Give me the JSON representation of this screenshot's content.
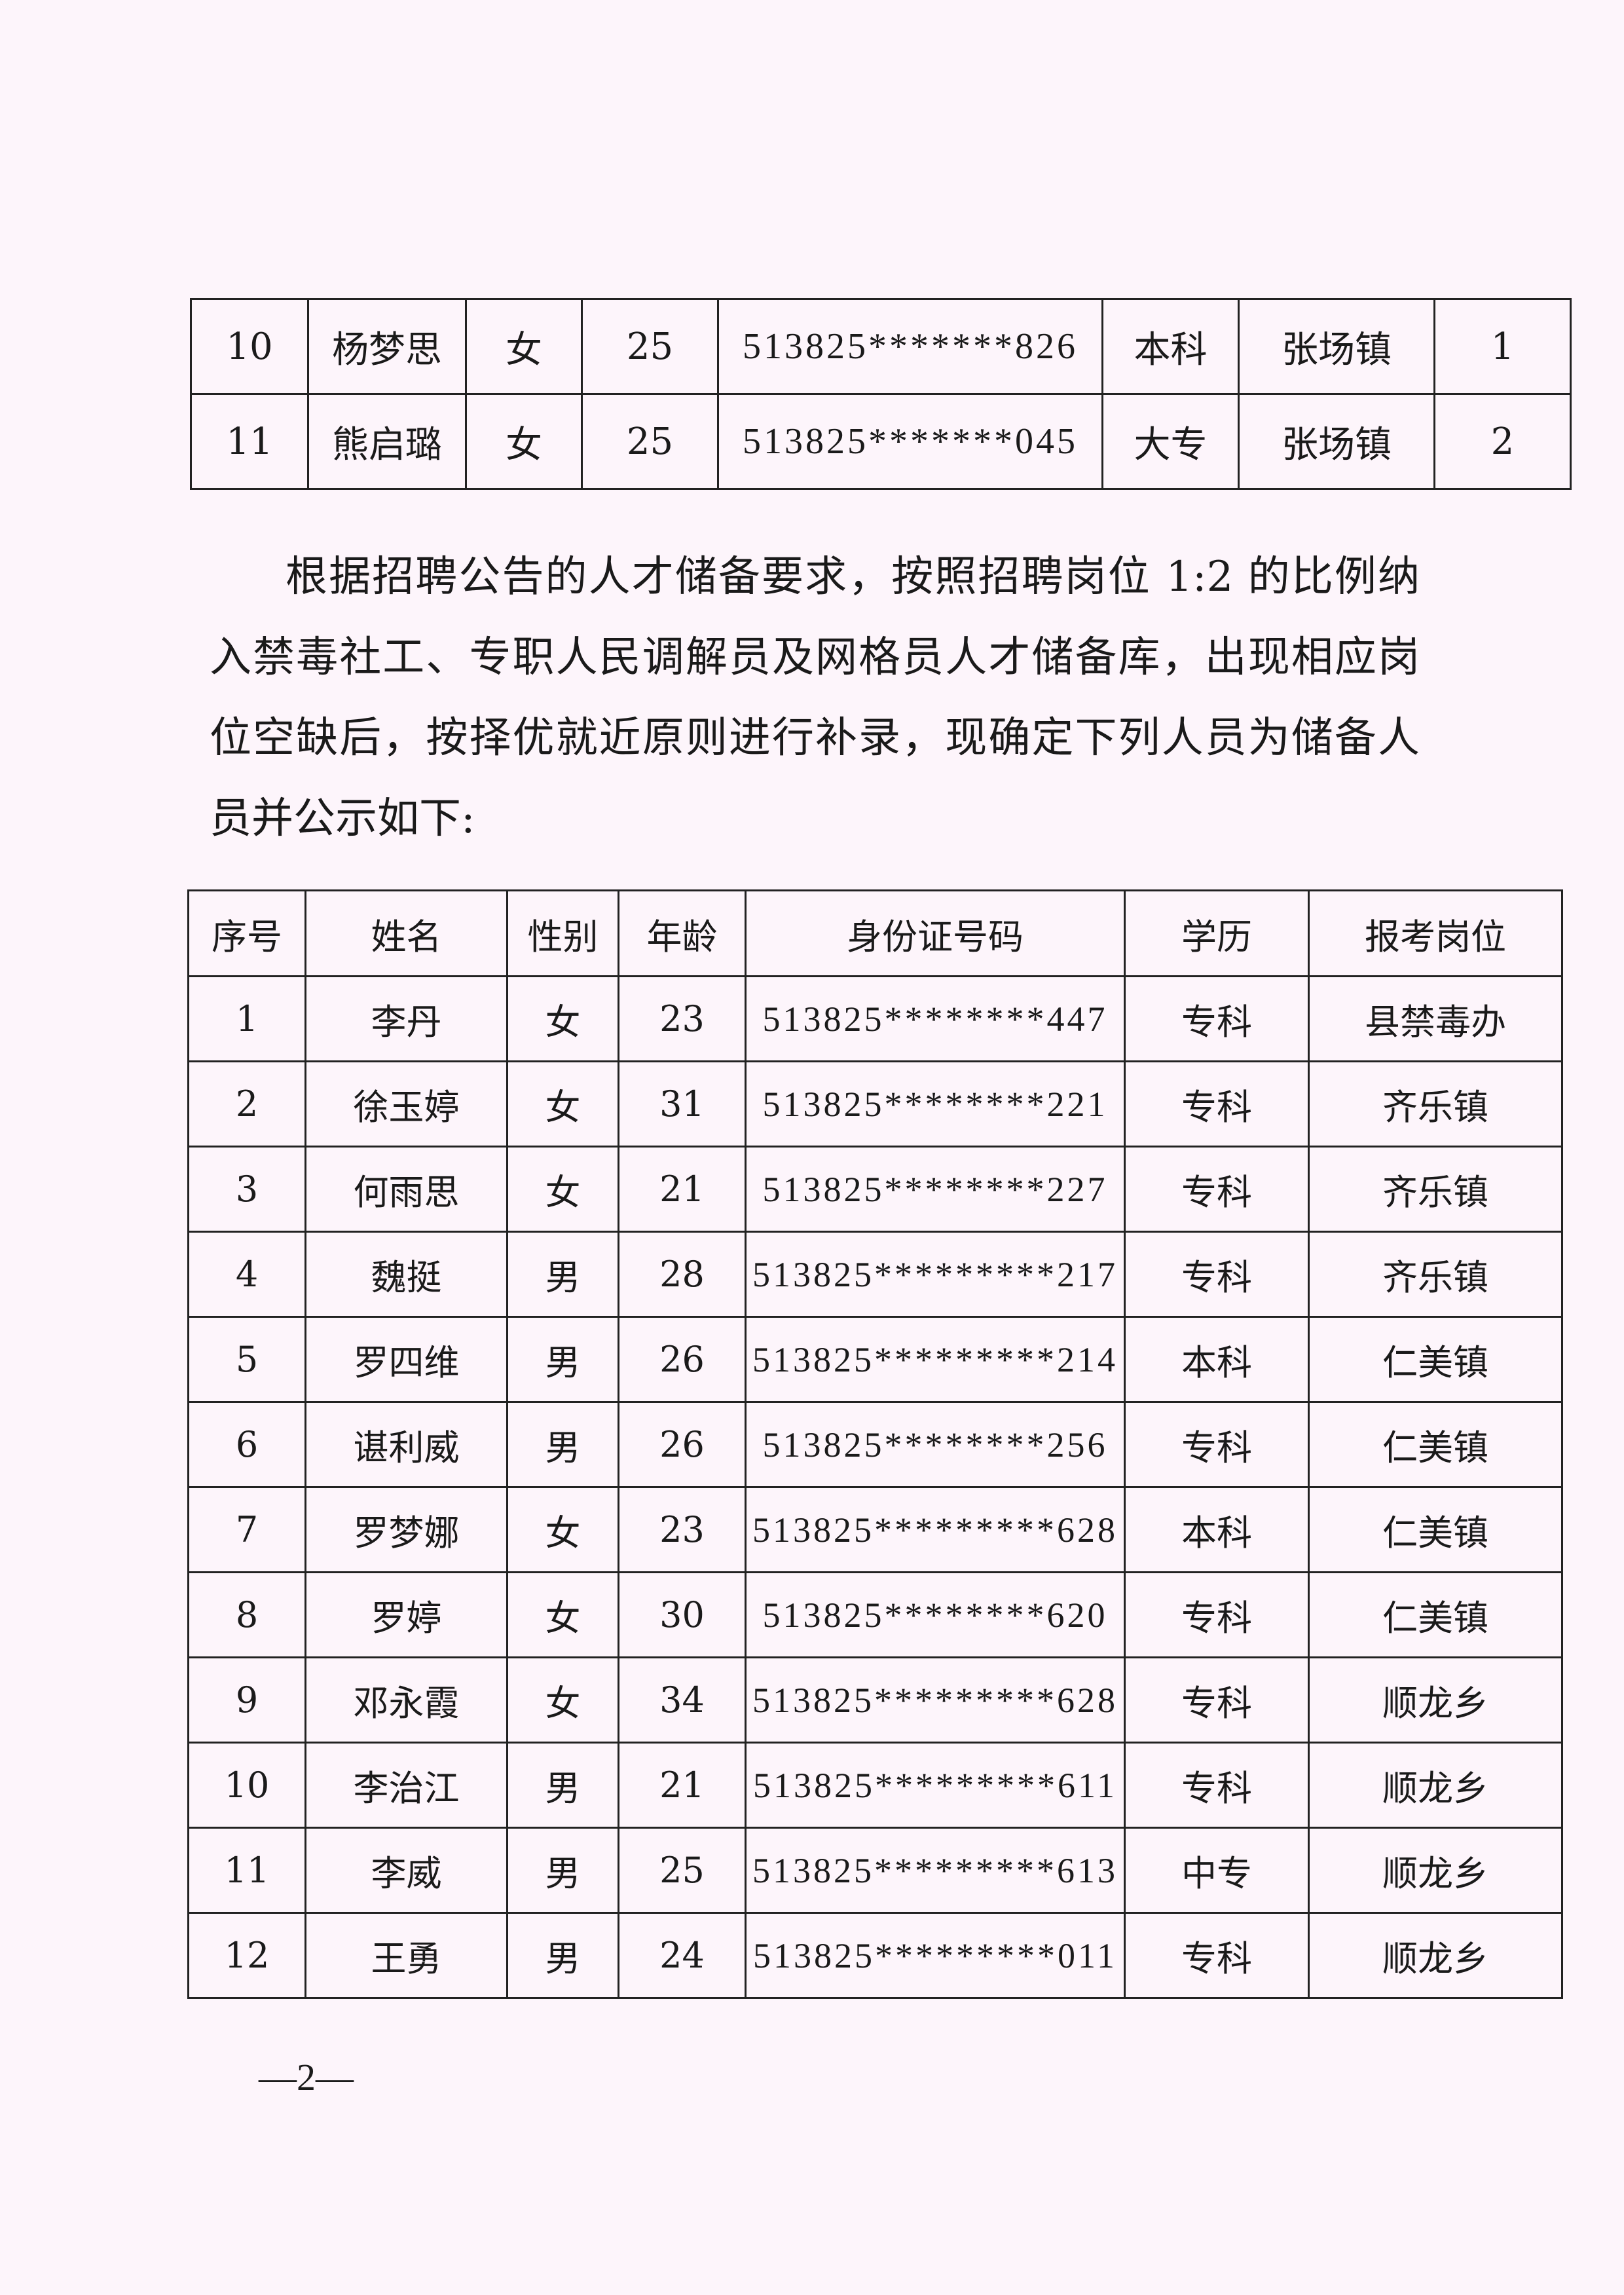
{
  "top_table": {
    "rows": [
      [
        "10",
        "杨梦思",
        "女",
        "25",
        "513825*******826",
        "本科",
        "张场镇",
        "1"
      ],
      [
        "11",
        "熊启璐",
        "女",
        "25",
        "513825*******045",
        "大专",
        "张场镇",
        "2"
      ]
    ]
  },
  "paragraph": {
    "lines": [
      "根据招聘公告的人才储备要求，按照招聘岗位 1:2 的比例纳",
      "入禁毒社工、专职人民调解员及网格员人才储备库，出现相应岗",
      "位空缺后，按择优就近原则进行补录，现确定下列人员为储备人",
      "员并公示如下:"
    ]
  },
  "reserve_table": {
    "headers": [
      "序号",
      "姓名",
      "性别",
      "年龄",
      "身份证号码",
      "学历",
      "报考岗位"
    ],
    "rows": [
      [
        "1",
        "李丹",
        "女",
        "23",
        "513825********447",
        "专科",
        "县禁毒办"
      ],
      [
        "2",
        "徐玉婷",
        "女",
        "31",
        "513825********221",
        "专科",
        "齐乐镇"
      ],
      [
        "3",
        "何雨思",
        "女",
        "21",
        "513825********227",
        "专科",
        "齐乐镇"
      ],
      [
        "4",
        "魏挺",
        "男",
        "28",
        "513825*********217",
        "专科",
        "齐乐镇"
      ],
      [
        "5",
        "罗四维",
        "男",
        "26",
        "513825*********214",
        "本科",
        "仁美镇"
      ],
      [
        "6",
        "谌利威",
        "男",
        "26",
        "513825********256",
        "专科",
        "仁美镇"
      ],
      [
        "7",
        "罗梦娜",
        "女",
        "23",
        "513825*********628",
        "本科",
        "仁美镇"
      ],
      [
        "8",
        "罗婷",
        "女",
        "30",
        "513825********620",
        "专科",
        "仁美镇"
      ],
      [
        "9",
        "邓永霞",
        "女",
        "34",
        "513825*********628",
        "专科",
        "顺龙乡"
      ],
      [
        "10",
        "李治江",
        "男",
        "21",
        "513825*********611",
        "专科",
        "顺龙乡"
      ],
      [
        "11",
        "李威",
        "男",
        "25",
        "513825*********613",
        "中专",
        "顺龙乡"
      ],
      [
        "12",
        "王勇",
        "男",
        "24",
        "513825*********011",
        "专科",
        "顺龙乡"
      ]
    ]
  },
  "page_number": "—2—"
}
